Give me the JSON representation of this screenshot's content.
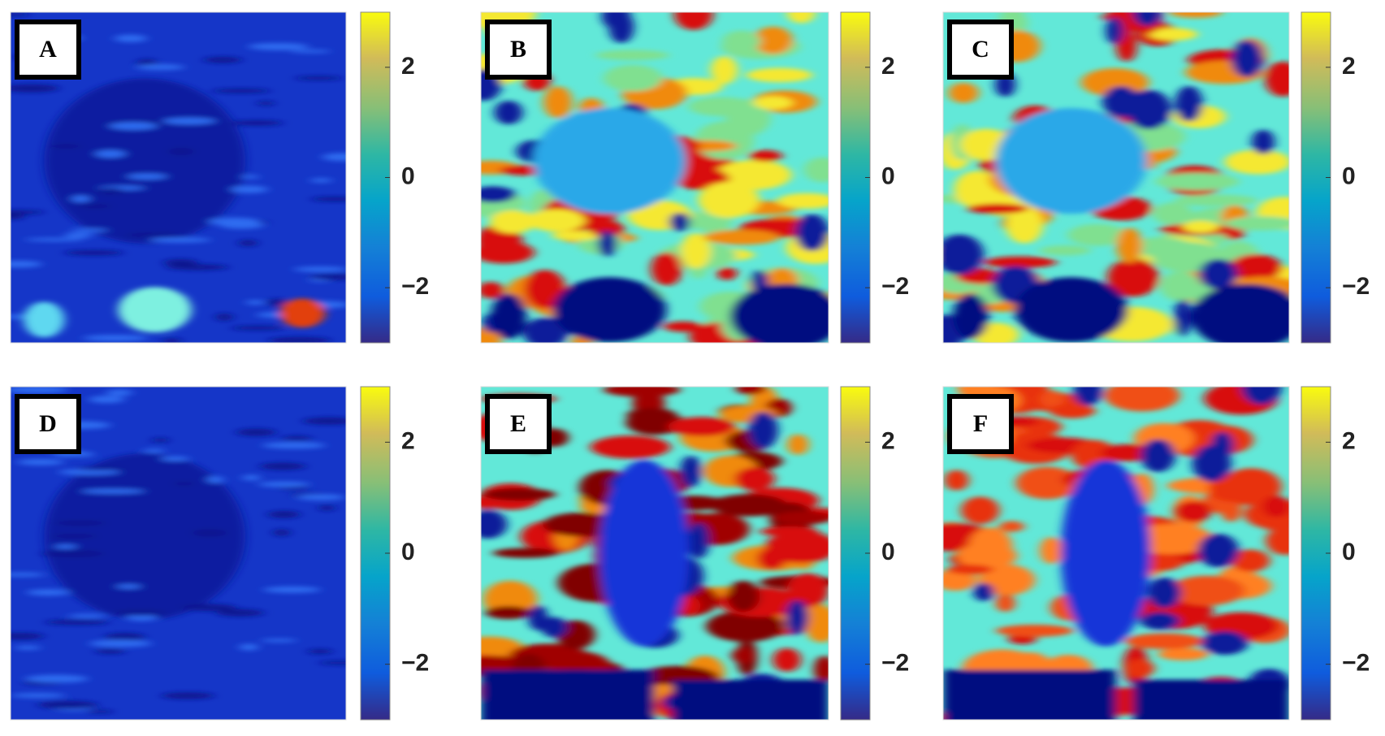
{
  "panels": [
    {
      "label": "A",
      "colorbar": {
        "lim": [
          -3,
          3
        ],
        "ticks": [
          {
            "value": -2,
            "label": "−2"
          },
          0,
          2
        ]
      }
    },
    {
      "label": "B",
      "colorbar": {
        "lim": [
          -3,
          3
        ],
        "ticks": [
          {
            "value": -2,
            "label": "−2"
          },
          0,
          2
        ]
      }
    },
    {
      "label": "C",
      "colorbar": {
        "lim": [
          -3,
          3
        ],
        "ticks": [
          {
            "value": -2,
            "label": "−2"
          },
          0,
          2
        ]
      }
    },
    {
      "label": "D",
      "colorbar": {
        "lim": [
          -3,
          3
        ],
        "ticks": [
          {
            "value": -2,
            "label": "−2"
          },
          0,
          2
        ]
      }
    },
    {
      "label": "E",
      "colorbar": {
        "lim": [
          -3,
          3
        ],
        "ticks": [
          {
            "value": -2,
            "label": "−2"
          },
          0,
          2
        ]
      }
    },
    {
      "label": "F",
      "colorbar": {
        "lim": [
          -3,
          3
        ],
        "ticks": [
          {
            "value": -2,
            "label": "−2"
          },
          0,
          2
        ]
      }
    }
  ]
}
